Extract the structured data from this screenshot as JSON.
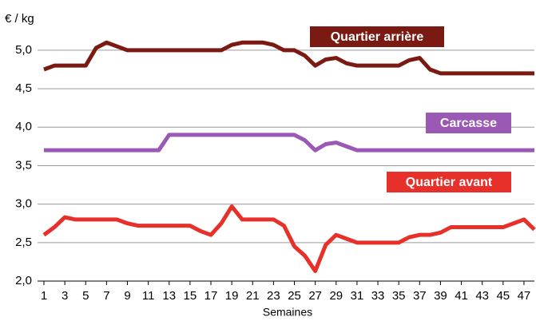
{
  "chart_data": {
    "type": "line",
    "y_label": "€ / kg",
    "x_label": "Semaines",
    "x": [
      1,
      2,
      3,
      4,
      5,
      6,
      7,
      8,
      9,
      10,
      11,
      12,
      13,
      14,
      15,
      16,
      17,
      18,
      19,
      20,
      21,
      22,
      23,
      24,
      25,
      26,
      27,
      28,
      29,
      30,
      31,
      32,
      33,
      34,
      35,
      36,
      37,
      38,
      39,
      40,
      41,
      42,
      43,
      44,
      45,
      46,
      47,
      48
    ],
    "xlim": [
      1,
      48
    ],
    "xticks": [
      1,
      3,
      5,
      7,
      9,
      11,
      13,
      15,
      17,
      19,
      21,
      23,
      25,
      27,
      29,
      31,
      33,
      35,
      37,
      39,
      41,
      43,
      45,
      47
    ],
    "ylim": [
      2,
      5.3
    ],
    "yticks": [
      {
        "value": 2,
        "label": "2,0"
      },
      {
        "value": 2.5,
        "label": "2,5"
      },
      {
        "value": 3,
        "label": "3,0"
      },
      {
        "value": 3.5,
        "label": "3,5"
      },
      {
        "value": 4,
        "label": "4,0"
      },
      {
        "value": 4.5,
        "label": "4,5"
      },
      {
        "value": 5,
        "label": "5,0"
      }
    ],
    "grid": true,
    "series": [
      {
        "name": "Quartier arrière",
        "color": "#7b1a12",
        "values": [
          4.75,
          4.8,
          4.8,
          4.8,
          4.8,
          5.03,
          5.1,
          5.05,
          5.0,
          5.0,
          5.0,
          5.0,
          5.0,
          5.0,
          5.0,
          5.0,
          5.0,
          5.0,
          5.07,
          5.1,
          5.1,
          5.1,
          5.07,
          5.0,
          5.0,
          4.93,
          4.8,
          4.88,
          4.9,
          4.83,
          4.8,
          4.8,
          4.8,
          4.8,
          4.8,
          4.87,
          4.9,
          4.75,
          4.7,
          4.7,
          4.7,
          4.7,
          4.7,
          4.7,
          4.7,
          4.7,
          4.7,
          4.7
        ]
      },
      {
        "name": "Carcasse",
        "color": "#9b59b6",
        "values": [
          3.7,
          3.7,
          3.7,
          3.7,
          3.7,
          3.7,
          3.7,
          3.7,
          3.7,
          3.7,
          3.7,
          3.7,
          3.9,
          3.9,
          3.9,
          3.9,
          3.9,
          3.9,
          3.9,
          3.9,
          3.9,
          3.9,
          3.9,
          3.9,
          3.9,
          3.83,
          3.7,
          3.78,
          3.8,
          3.75,
          3.7,
          3.7,
          3.7,
          3.7,
          3.7,
          3.7,
          3.7,
          3.7,
          3.7,
          3.7,
          3.7,
          3.7,
          3.7,
          3.7,
          3.7,
          3.7,
          3.7,
          3.7
        ]
      },
      {
        "name": "Quartier avant",
        "color": "#e8302a",
        "values": [
          2.6,
          2.7,
          2.83,
          2.8,
          2.8,
          2.8,
          2.8,
          2.8,
          2.75,
          2.72,
          2.72,
          2.72,
          2.72,
          2.72,
          2.72,
          2.65,
          2.6,
          2.75,
          2.97,
          2.8,
          2.8,
          2.8,
          2.8,
          2.72,
          2.45,
          2.33,
          2.13,
          2.47,
          2.6,
          2.55,
          2.5,
          2.5,
          2.5,
          2.5,
          2.5,
          2.57,
          2.6,
          2.6,
          2.63,
          2.7,
          2.7,
          2.7,
          2.7,
          2.7,
          2.7,
          2.75,
          2.8,
          2.67
        ]
      }
    ]
  }
}
